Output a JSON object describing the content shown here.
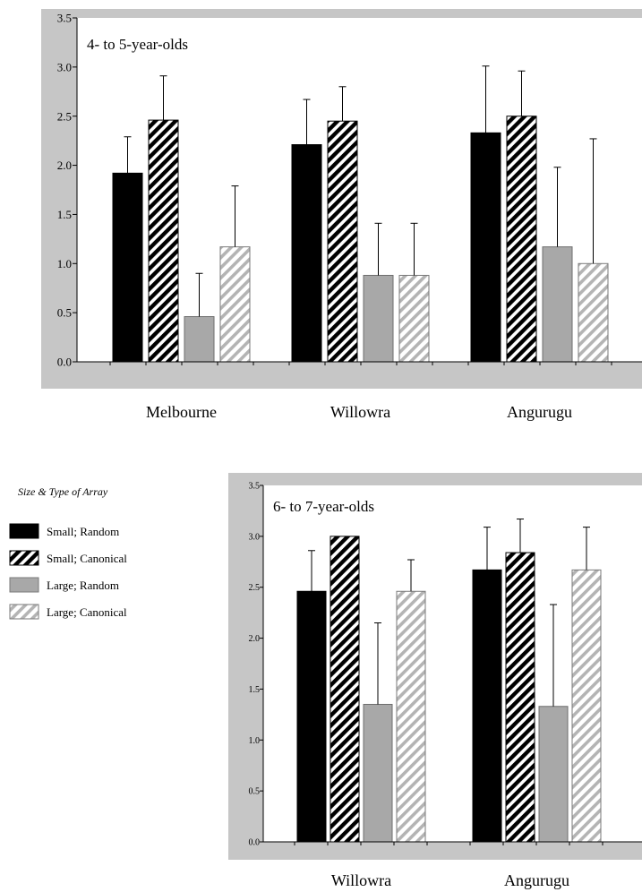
{
  "chart_data": [
    {
      "type": "bar",
      "title": "4- to 5-year-olds",
      "categories": [
        "Melbourne",
        "Willowra",
        "Angurugu"
      ],
      "ylim": [
        0,
        3.5
      ],
      "yticks": [
        "0.0",
        "0.5",
        "1.0",
        "1.5",
        "2.0",
        "2.5",
        "3.0",
        "3.5"
      ],
      "error_bars": "upper",
      "series": [
        {
          "name": "Small; Random",
          "values": [
            1.92,
            2.21,
            2.33
          ],
          "errors": [
            0.37,
            0.46,
            0.68
          ]
        },
        {
          "name": "Small; Canonical",
          "values": [
            2.46,
            2.45,
            2.5
          ],
          "errors": [
            0.45,
            0.35,
            0.46
          ]
        },
        {
          "name": "Large; Random",
          "values": [
            0.46,
            0.88,
            1.17
          ],
          "errors": [
            0.44,
            0.53,
            0.81
          ]
        },
        {
          "name": "Large; Canonical",
          "values": [
            1.17,
            0.88,
            1.0
          ],
          "errors": [
            0.62,
            0.53,
            1.27
          ]
        }
      ]
    },
    {
      "type": "bar",
      "title": "6- to 7-year-olds",
      "categories": [
        "Willowra",
        "Angurugu"
      ],
      "ylim": [
        0,
        3.5
      ],
      "yticks": [
        "0.0",
        "0.5",
        "1.0",
        "1.5",
        "2.0",
        "2.5",
        "3.0",
        "3.5"
      ],
      "error_bars": "upper",
      "series": [
        {
          "name": "Small; Random",
          "values": [
            2.46,
            2.67
          ],
          "errors": [
            0.4,
            0.42
          ]
        },
        {
          "name": "Small; Canonical",
          "values": [
            3.0,
            2.84
          ],
          "errors": [
            0.0,
            0.33
          ]
        },
        {
          "name": "Large; Random",
          "values": [
            1.35,
            1.33
          ],
          "errors": [
            0.8,
            1.0
          ]
        },
        {
          "name": "Large; Canonical",
          "values": [
            2.46,
            2.67
          ],
          "errors": [
            0.31,
            0.42
          ]
        }
      ]
    }
  ],
  "legend": {
    "title": "Size & Type of Array",
    "items": [
      {
        "label": "Small; Random",
        "fill": "#000000",
        "pattern": "solid"
      },
      {
        "label": "Small; Canonical",
        "fill": "#000000",
        "pattern": "hatch-dark"
      },
      {
        "label": "Large; Random",
        "fill": "#a8a8a8",
        "pattern": "solid"
      },
      {
        "label": "Large; Canonical",
        "fill": "#c8c8c8",
        "pattern": "hatch-light"
      }
    ]
  },
  "colors": {
    "panel_bg": "#c6c6c6",
    "plot_bg": "#ffffff",
    "axis": "#000000"
  }
}
